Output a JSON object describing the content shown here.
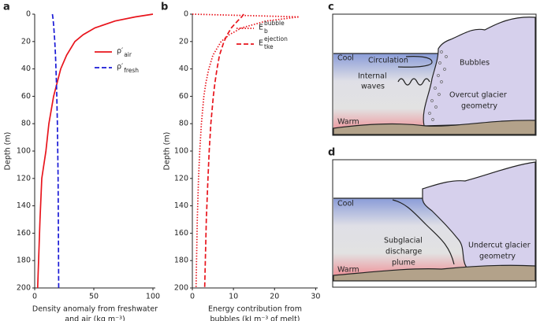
{
  "chart_data": [
    {
      "type": "line",
      "panel_label": "a",
      "xlabel": [
        "Density anomaly from freshwater",
        "and air (kg m⁻³)"
      ],
      "ylabel": "Depth (m)",
      "y": [
        0,
        2,
        5,
        10,
        15,
        20,
        30,
        40,
        50,
        60,
        80,
        100,
        120,
        150,
        200
      ],
      "series": [
        {
          "name": "ρ′",
          "sub": "air",
          "color": "#e8141c",
          "dash": "solid",
          "values": [
            100,
            85,
            68,
            51,
            41,
            34,
            27,
            22,
            19,
            16,
            12,
            9.5,
            6,
            4.5,
            2.5
          ]
        },
        {
          "name": "ρ′",
          "sub": "fresh",
          "color": "#1a1ad6",
          "dash": "dashed",
          "values": [
            15,
            15.3,
            15.7,
            16.2,
            16.6,
            17,
            17.6,
            18,
            18.4,
            18.7,
            19.2,
            19.5,
            19.8,
            20,
            20.3
          ]
        }
      ],
      "xlim": [
        0,
        102
      ],
      "ylim": [
        0,
        200
      ],
      "y_inverted": true,
      "xticks": [
        0,
        50,
        100
      ],
      "yticks": [
        0,
        20,
        40,
        60,
        80,
        100,
        120,
        140,
        160,
        180,
        200
      ]
    },
    {
      "type": "line",
      "panel_label": "b",
      "xlabel": [
        "Energy contribution from",
        "bubbles (kJ m⁻³ of melt)"
      ],
      "ylabel": "Depth (m)",
      "y": [
        0,
        2,
        5,
        10,
        15,
        20,
        30,
        40,
        50,
        60,
        80,
        100,
        120,
        150,
        200
      ],
      "series": [
        {
          "name": "E",
          "sub": "b",
          "sup": "bubble",
          "color": "#e8141c",
          "dash": "dotted",
          "values": [
            0,
            26,
            18,
            12,
            9,
            7,
            5,
            4,
            3.3,
            2.8,
            2.2,
            1.8,
            1.5,
            1.2,
            0.9
          ]
        },
        {
          "name": "E",
          "sub": "tke",
          "sup": "ejection",
          "color": "#e8141c",
          "dash": "dashed",
          "values": [
            12.5,
            12,
            11,
            9.5,
            8.5,
            7.7,
            6.6,
            6,
            5.5,
            5.1,
            4.5,
            4.1,
            3.8,
            3.4,
            3
          ]
        }
      ],
      "xlim": [
        0,
        30.5
      ],
      "ylim": [
        0,
        200
      ],
      "y_inverted": true,
      "xticks": [
        0,
        10,
        20,
        30
      ],
      "yticks": [
        0,
        20,
        40,
        60,
        80,
        100,
        120,
        140,
        160,
        180,
        200
      ]
    }
  ],
  "diagrams": [
    {
      "panel_label": "c",
      "cool": "Cool",
      "circulation": "Circulation",
      "bubbles": "Bubbles",
      "internal_waves": [
        "Internal",
        "waves"
      ],
      "geometry": [
        "Overcut glacier",
        "geometry"
      ],
      "warm": "Warm"
    },
    {
      "panel_label": "d",
      "cool": "Cool",
      "plume": [
        "Subglacial",
        "discharge",
        "plume"
      ],
      "geometry": [
        "Undercut glacier",
        "geometry"
      ],
      "warm": "Warm"
    }
  ]
}
